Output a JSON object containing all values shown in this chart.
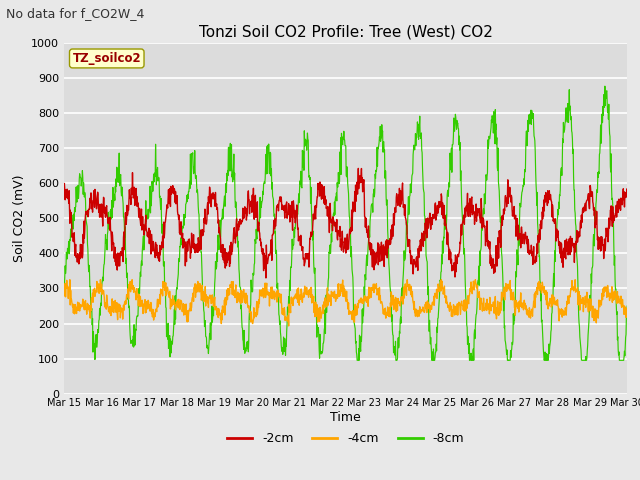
{
  "title": "Tonzi Soil CO2 Profile: Tree (West) CO2",
  "subtitle": "No data for f_CO2W_4",
  "ylabel": "Soil CO2 (mV)",
  "xlabel": "Time",
  "box_label": "TZ_soilco2",
  "ylim": [
    0,
    1000
  ],
  "yticks": [
    0,
    100,
    200,
    300,
    400,
    500,
    600,
    700,
    800,
    900,
    1000
  ],
  "x_tick_labels": [
    "Mar 15",
    "Mar 16",
    "Mar 17",
    "Mar 18",
    "Mar 19",
    "Mar 20",
    "Mar 21",
    "Mar 22",
    "Mar 23",
    "Mar 24",
    "Mar 25",
    "Mar 26",
    "Mar 27",
    "Mar 28",
    "Mar 29",
    "Mar 30"
  ],
  "legend_labels": [
    "-2cm",
    "-4cm",
    "-8cm"
  ],
  "legend_colors": [
    "#cc0000",
    "#ffa500",
    "#33cc00"
  ],
  "color_2cm": "#cc0000",
  "color_4cm": "#ffa500",
  "color_8cm": "#33cc00",
  "background_color": "#e8e8e8",
  "plot_bg_color": "#dcdcdc",
  "grid_color": "#ffffff",
  "title_fontsize": 11,
  "subtitle_fontsize": 9,
  "n_points": 1440
}
